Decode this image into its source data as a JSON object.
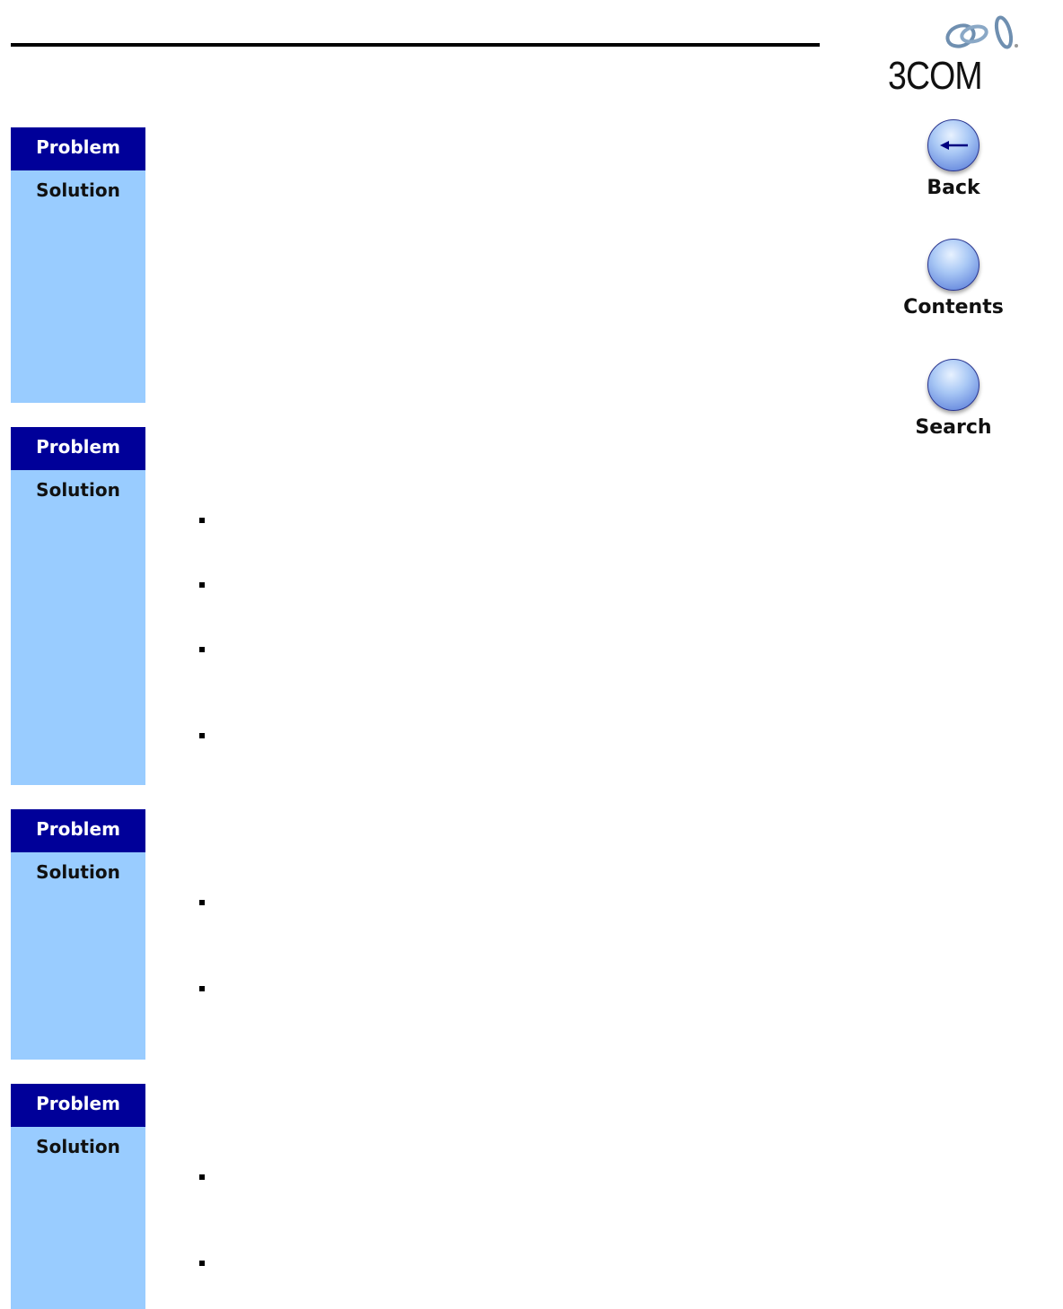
{
  "brand": {
    "logo_text": "3COM"
  },
  "nav": [
    {
      "label": "Back",
      "icon": "arrow-left-icon"
    },
    {
      "label": "Contents",
      "icon": "orb-icon"
    },
    {
      "label": "Search",
      "icon": "orb-icon"
    }
  ],
  "sections": [
    {
      "problem_label": "Problem",
      "solution_label": "Solution"
    },
    {
      "problem_label": "Problem",
      "solution_label": "Solution"
    },
    {
      "problem_label": "Problem",
      "solution_label": "Solution"
    },
    {
      "problem_label": "Problem",
      "solution_label": "Solution"
    }
  ],
  "colors": {
    "problem_bg": "#000099",
    "solution_bg": "#99ccff"
  }
}
